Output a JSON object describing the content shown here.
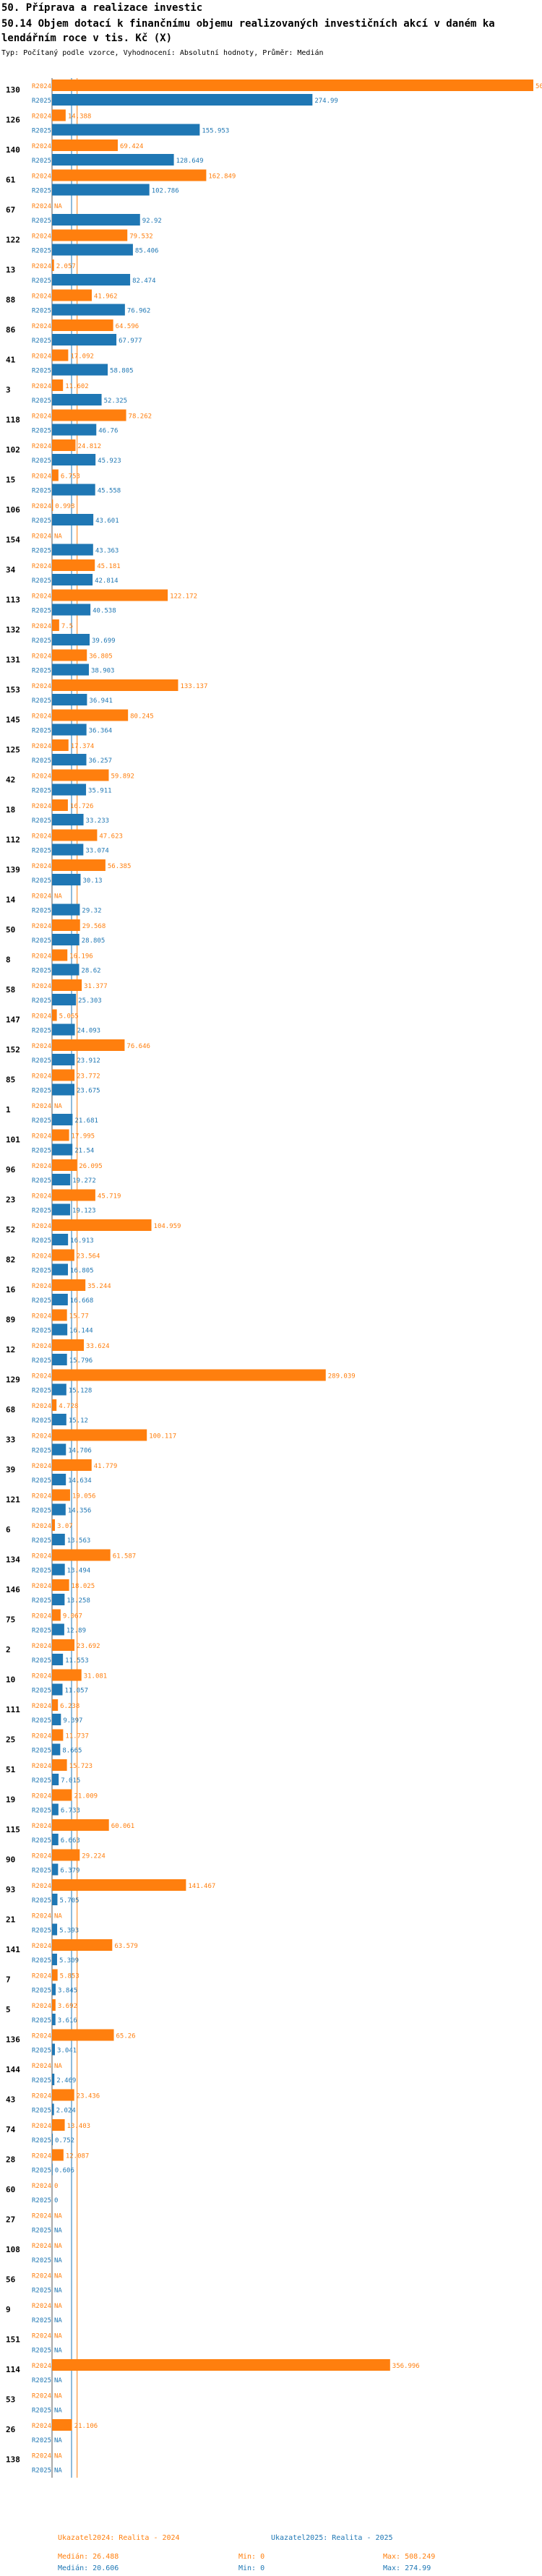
{
  "header": {
    "title": "50. Příprava a realizace investic",
    "subtitle_line1": "50.14 Objem dotací k finančnímu objemu realizovaných investičních akcí v daném ka",
    "subtitle_line2": "lendářním roce v tis. Kč (X)",
    "info": "Typ: Počítaný podle vzorce, Vyhodnocení: Absolutní hodnoty, Průměr: Medián"
  },
  "colors": {
    "r2024": "#ff7f0e",
    "r2025": "#1f77b4",
    "median": "#ff7f0e",
    "median25": "#1f77b4"
  },
  "chart_data": {
    "type": "bar",
    "orientation": "horizontal",
    "xlim": [
      0,
      508.249
    ],
    "series": [
      {
        "name": "R2024",
        "color": "#ff7f0e"
      },
      {
        "name": "R2025",
        "color": "#1f77b4"
      }
    ],
    "median_2024": 26.488,
    "median_2025": 20.606,
    "na_label": "NA",
    "rows": [
      {
        "id": "130",
        "r2024": "508.249",
        "r2025": "274.99"
      },
      {
        "id": "126",
        "r2024": "14.388",
        "r2025": "155.953"
      },
      {
        "id": "140",
        "r2024": "69.424",
        "r2025": "128.649"
      },
      {
        "id": "61",
        "r2024": "162.849",
        "r2025": "102.786"
      },
      {
        "id": "67",
        "r2024": "NA",
        "r2025": "92.92"
      },
      {
        "id": "122",
        "r2024": "79.532",
        "r2025": "85.406"
      },
      {
        "id": "13",
        "r2024": "2.057",
        "r2025": "82.474"
      },
      {
        "id": "88",
        "r2024": "41.962",
        "r2025": "76.962"
      },
      {
        "id": "86",
        "r2024": "64.596",
        "r2025": "67.977"
      },
      {
        "id": "41",
        "r2024": "17.092",
        "r2025": "58.805"
      },
      {
        "id": "3",
        "r2024": "11.602",
        "r2025": "52.325"
      },
      {
        "id": "118",
        "r2024": "78.262",
        "r2025": "46.76"
      },
      {
        "id": "102",
        "r2024": "24.812",
        "r2025": "45.923"
      },
      {
        "id": "15",
        "r2024": "6.753",
        "r2025": "45.558"
      },
      {
        "id": "106",
        "r2024": "0.998",
        "r2025": "43.601"
      },
      {
        "id": "154",
        "r2024": "NA",
        "r2025": "43.363"
      },
      {
        "id": "34",
        "r2024": "45.181",
        "r2025": "42.814"
      },
      {
        "id": "113",
        "r2024": "122.172",
        "r2025": "40.538"
      },
      {
        "id": "132",
        "r2024": "7.5",
        "r2025": "39.699"
      },
      {
        "id": "131",
        "r2024": "36.805",
        "r2025": "38.903"
      },
      {
        "id": "153",
        "r2024": "133.137",
        "r2025": "36.941"
      },
      {
        "id": "145",
        "r2024": "80.245",
        "r2025": "36.364"
      },
      {
        "id": "125",
        "r2024": "17.374",
        "r2025": "36.257"
      },
      {
        "id": "42",
        "r2024": "59.892",
        "r2025": "35.911"
      },
      {
        "id": "18",
        "r2024": "16.726",
        "r2025": "33.233"
      },
      {
        "id": "112",
        "r2024": "47.623",
        "r2025": "33.074"
      },
      {
        "id": "139",
        "r2024": "56.385",
        "r2025": "30.13"
      },
      {
        "id": "14",
        "r2024": "NA",
        "r2025": "29.32"
      },
      {
        "id": "50",
        "r2024": "29.568",
        "r2025": "28.805"
      },
      {
        "id": "8",
        "r2024": "16.196",
        "r2025": "28.62"
      },
      {
        "id": "58",
        "r2024": "31.377",
        "r2025": "25.303"
      },
      {
        "id": "147",
        "r2024": "5.065",
        "r2025": "24.093"
      },
      {
        "id": "152",
        "r2024": "76.646",
        "r2025": "23.912"
      },
      {
        "id": "85",
        "r2024": "23.772",
        "r2025": "23.675"
      },
      {
        "id": "1",
        "r2024": "NA",
        "r2025": "21.681"
      },
      {
        "id": "101",
        "r2024": "17.995",
        "r2025": "21.54"
      },
      {
        "id": "96",
        "r2024": "26.095",
        "r2025": "19.272"
      },
      {
        "id": "23",
        "r2024": "45.719",
        "r2025": "19.123"
      },
      {
        "id": "52",
        "r2024": "104.959",
        "r2025": "16.913"
      },
      {
        "id": "82",
        "r2024": "23.564",
        "r2025": "16.805"
      },
      {
        "id": "16",
        "r2024": "35.244",
        "r2025": "16.668"
      },
      {
        "id": "89",
        "r2024": "15.77",
        "r2025": "16.144"
      },
      {
        "id": "12",
        "r2024": "33.624",
        "r2025": "15.796"
      },
      {
        "id": "129",
        "r2024": "289.039",
        "r2025": "15.128"
      },
      {
        "id": "68",
        "r2024": "4.728",
        "r2025": "15.12"
      },
      {
        "id": "33",
        "r2024": "100.117",
        "r2025": "14.706"
      },
      {
        "id": "39",
        "r2024": "41.779",
        "r2025": "14.634"
      },
      {
        "id": "121",
        "r2024": "19.056",
        "r2025": "14.356"
      },
      {
        "id": "6",
        "r2024": "3.07",
        "r2025": "13.563"
      },
      {
        "id": "134",
        "r2024": "61.587",
        "r2025": "13.494"
      },
      {
        "id": "146",
        "r2024": "18.025",
        "r2025": "13.258"
      },
      {
        "id": "75",
        "r2024": "9.067",
        "r2025": "12.89"
      },
      {
        "id": "2",
        "r2024": "23.692",
        "r2025": "11.553"
      },
      {
        "id": "10",
        "r2024": "31.081",
        "r2025": "11.057"
      },
      {
        "id": "111",
        "r2024": "6.238",
        "r2025": "9.397"
      },
      {
        "id": "25",
        "r2024": "11.737",
        "r2025": "8.665"
      },
      {
        "id": "51",
        "r2024": "15.723",
        "r2025": "7.015"
      },
      {
        "id": "19",
        "r2024": "21.009",
        "r2025": "6.733"
      },
      {
        "id": "115",
        "r2024": "60.061",
        "r2025": "6.663"
      },
      {
        "id": "90",
        "r2024": "29.224",
        "r2025": "6.379"
      },
      {
        "id": "93",
        "r2024": "141.467",
        "r2025": "5.705"
      },
      {
        "id": "21",
        "r2024": "NA",
        "r2025": "5.393"
      },
      {
        "id": "141",
        "r2024": "63.579",
        "r2025": "5.309"
      },
      {
        "id": "7",
        "r2024": "5.853",
        "r2025": "3.845"
      },
      {
        "id": "5",
        "r2024": "3.692",
        "r2025": "3.616"
      },
      {
        "id": "136",
        "r2024": "65.26",
        "r2025": "3.041"
      },
      {
        "id": "144",
        "r2024": "NA",
        "r2025": "2.469"
      },
      {
        "id": "43",
        "r2024": "23.436",
        "r2025": "2.024"
      },
      {
        "id": "74",
        "r2024": "13.403",
        "r2025": "0.752"
      },
      {
        "id": "28",
        "r2024": "12.087",
        "r2025": "0.606"
      },
      {
        "id": "60",
        "r2024": "0",
        "r2025": "0"
      },
      {
        "id": "27",
        "r2024": "NA",
        "r2025": "NA"
      },
      {
        "id": "108",
        "r2024": "NA",
        "r2025": "NA"
      },
      {
        "id": "56",
        "r2024": "NA",
        "r2025": "NA"
      },
      {
        "id": "9",
        "r2024": "NA",
        "r2025": "NA"
      },
      {
        "id": "151",
        "r2024": "NA",
        "r2025": "NA"
      },
      {
        "id": "114",
        "r2024": "356.996",
        "r2025": "NA"
      },
      {
        "id": "53",
        "r2024": "NA",
        "r2025": "NA"
      },
      {
        "id": "26",
        "r2024": "21.106",
        "r2025": "NA"
      },
      {
        "id": "138",
        "r2024": "NA",
        "r2025": "NA"
      }
    ]
  },
  "footer": {
    "col1_title": "Ukazatel2024: Realita - 2024",
    "col1_median": "Medián: 26.488",
    "col1_min": "Min: 0",
    "col1_max": "Max: 508.249",
    "col2_title": "Ukazatel2025: Realita - 2025",
    "col2_median": "Medián: 20.606",
    "col2_min": "Min: 0",
    "col2_max": "Max: 274.99"
  }
}
